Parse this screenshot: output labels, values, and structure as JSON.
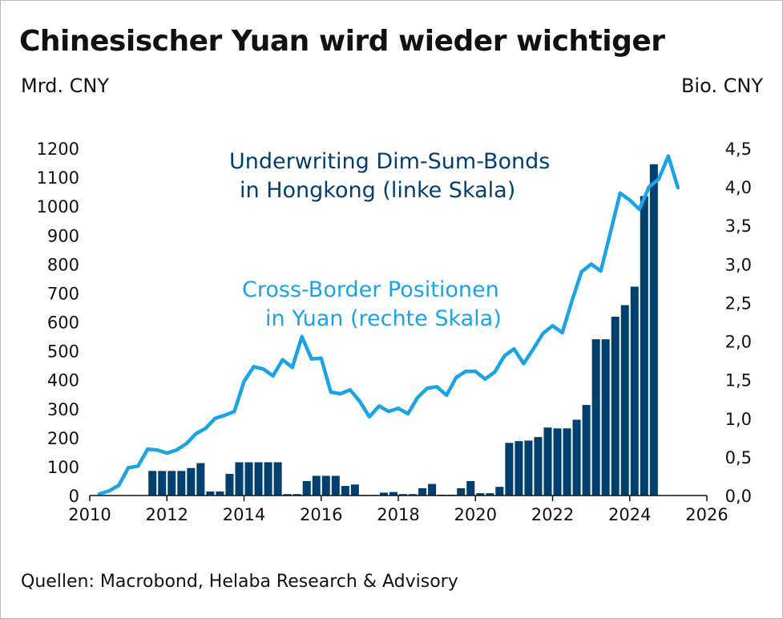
{
  "header": {
    "title": "Chinesischer Yuan wird wieder wichtiger",
    "left_unit": "Mrd. CNY",
    "right_unit": "Bio. CNY"
  },
  "footer": {
    "source": "Quellen: Macrobond, Helaba Research & Advisory"
  },
  "chart_data": {
    "type": "bar",
    "x_axis": {
      "range": [
        2010,
        2026
      ],
      "ticks": [
        "2010",
        "2012",
        "2014",
        "2016",
        "2018",
        "2020",
        "2022",
        "2024",
        "2026"
      ]
    },
    "y_left": {
      "range": [
        0,
        1200
      ],
      "ticks": [
        "0",
        "100",
        "200",
        "300",
        "400",
        "500",
        "600",
        "700",
        "800",
        "900",
        "1000",
        "1100",
        "1200"
      ]
    },
    "y_right": {
      "range": [
        0,
        4.5
      ],
      "ticks": [
        "0,0",
        "0,5",
        "1,0",
        "1,5",
        "2,0",
        "2,5",
        "3,0",
        "3,5",
        "4,0",
        "4,5"
      ]
    },
    "grid": false,
    "colors": {
      "bars": "#00406e",
      "line": "#1aa3e6"
    },
    "annotations": {
      "bars_label_line1": "Underwriting Dim-Sum-Bonds",
      "bars_label_line2": "in Hongkong (linke Skala)",
      "line_label_line1": "Cross-Border Positionen",
      "line_label_line2": "in Yuan (rechte Skala)"
    },
    "series": [
      {
        "axis": "left",
        "type": "bar",
        "points": [
          {
            "x": 2011.5,
            "y": 85
          },
          {
            "x": 2011.75,
            "y": 85
          },
          {
            "x": 2012.0,
            "y": 85
          },
          {
            "x": 2012.25,
            "y": 85
          },
          {
            "x": 2012.5,
            "y": 95
          },
          {
            "x": 2012.75,
            "y": 112
          },
          {
            "x": 2013.0,
            "y": 14
          },
          {
            "x": 2013.25,
            "y": 14
          },
          {
            "x": 2013.5,
            "y": 75
          },
          {
            "x": 2013.75,
            "y": 115
          },
          {
            "x": 2014.0,
            "y": 115
          },
          {
            "x": 2014.25,
            "y": 115
          },
          {
            "x": 2014.5,
            "y": 115
          },
          {
            "x": 2014.75,
            "y": 115
          },
          {
            "x": 2015.0,
            "y": 5
          },
          {
            "x": 2015.25,
            "y": 5
          },
          {
            "x": 2015.5,
            "y": 50
          },
          {
            "x": 2015.75,
            "y": 68
          },
          {
            "x": 2016.0,
            "y": 68
          },
          {
            "x": 2016.25,
            "y": 68
          },
          {
            "x": 2016.5,
            "y": 33
          },
          {
            "x": 2016.75,
            "y": 38
          },
          {
            "x": 2017.0,
            "y": 2
          },
          {
            "x": 2017.25,
            "y": 2
          },
          {
            "x": 2017.5,
            "y": 10
          },
          {
            "x": 2017.75,
            "y": 12
          },
          {
            "x": 2018.0,
            "y": 5
          },
          {
            "x": 2018.25,
            "y": 5
          },
          {
            "x": 2018.5,
            "y": 25
          },
          {
            "x": 2018.75,
            "y": 40
          },
          {
            "x": 2019.0,
            "y": 3
          },
          {
            "x": 2019.25,
            "y": 3
          },
          {
            "x": 2019.5,
            "y": 25
          },
          {
            "x": 2019.75,
            "y": 50
          },
          {
            "x": 2020.0,
            "y": 8
          },
          {
            "x": 2020.25,
            "y": 8
          },
          {
            "x": 2020.5,
            "y": 30
          },
          {
            "x": 2020.75,
            "y": 182
          },
          {
            "x": 2021.0,
            "y": 188
          },
          {
            "x": 2021.25,
            "y": 190
          },
          {
            "x": 2021.5,
            "y": 202
          },
          {
            "x": 2021.75,
            "y": 235
          },
          {
            "x": 2022.0,
            "y": 232
          },
          {
            "x": 2022.25,
            "y": 232
          },
          {
            "x": 2022.5,
            "y": 262
          },
          {
            "x": 2022.75,
            "y": 313
          },
          {
            "x": 2023.0,
            "y": 540
          },
          {
            "x": 2023.25,
            "y": 540
          },
          {
            "x": 2023.5,
            "y": 618
          },
          {
            "x": 2023.75,
            "y": 658
          },
          {
            "x": 2024.0,
            "y": 722
          },
          {
            "x": 2024.25,
            "y": 1035
          },
          {
            "x": 2024.5,
            "y": 1145
          }
        ]
      },
      {
        "axis": "right",
        "type": "line",
        "points": [
          {
            "x": 2010.25,
            "y": 0.02
          },
          {
            "x": 2010.5,
            "y": 0.06
          },
          {
            "x": 2010.75,
            "y": 0.13
          },
          {
            "x": 2011.0,
            "y": 0.36
          },
          {
            "x": 2011.25,
            "y": 0.38
          },
          {
            "x": 2011.5,
            "y": 0.6
          },
          {
            "x": 2011.75,
            "y": 0.59
          },
          {
            "x": 2012.0,
            "y": 0.55
          },
          {
            "x": 2012.25,
            "y": 0.59
          },
          {
            "x": 2012.5,
            "y": 0.67
          },
          {
            "x": 2012.75,
            "y": 0.8
          },
          {
            "x": 2013.0,
            "y": 0.87
          },
          {
            "x": 2013.25,
            "y": 1.0
          },
          {
            "x": 2013.5,
            "y": 1.04
          },
          {
            "x": 2013.75,
            "y": 1.09
          },
          {
            "x": 2014.0,
            "y": 1.48
          },
          {
            "x": 2014.25,
            "y": 1.67
          },
          {
            "x": 2014.5,
            "y": 1.64
          },
          {
            "x": 2014.75,
            "y": 1.55
          },
          {
            "x": 2015.0,
            "y": 1.76
          },
          {
            "x": 2015.25,
            "y": 1.66
          },
          {
            "x": 2015.5,
            "y": 2.06
          },
          {
            "x": 2015.75,
            "y": 1.77
          },
          {
            "x": 2016.0,
            "y": 1.78
          },
          {
            "x": 2016.25,
            "y": 1.34
          },
          {
            "x": 2016.5,
            "y": 1.32
          },
          {
            "x": 2016.75,
            "y": 1.37
          },
          {
            "x": 2017.0,
            "y": 1.22
          },
          {
            "x": 2017.25,
            "y": 1.02
          },
          {
            "x": 2017.5,
            "y": 1.16
          },
          {
            "x": 2017.75,
            "y": 1.09
          },
          {
            "x": 2018.0,
            "y": 1.13
          },
          {
            "x": 2018.25,
            "y": 1.06
          },
          {
            "x": 2018.5,
            "y": 1.27
          },
          {
            "x": 2018.75,
            "y": 1.39
          },
          {
            "x": 2019.0,
            "y": 1.41
          },
          {
            "x": 2019.25,
            "y": 1.3
          },
          {
            "x": 2019.5,
            "y": 1.53
          },
          {
            "x": 2019.75,
            "y": 1.61
          },
          {
            "x": 2020.0,
            "y": 1.61
          },
          {
            "x": 2020.25,
            "y": 1.51
          },
          {
            "x": 2020.5,
            "y": 1.6
          },
          {
            "x": 2020.75,
            "y": 1.81
          },
          {
            "x": 2021.0,
            "y": 1.9
          },
          {
            "x": 2021.25,
            "y": 1.71
          },
          {
            "x": 2021.5,
            "y": 1.9
          },
          {
            "x": 2021.75,
            "y": 2.1
          },
          {
            "x": 2022.0,
            "y": 2.2
          },
          {
            "x": 2022.25,
            "y": 2.11
          },
          {
            "x": 2022.5,
            "y": 2.52
          },
          {
            "x": 2022.75,
            "y": 2.9
          },
          {
            "x": 2023.0,
            "y": 3.0
          },
          {
            "x": 2023.25,
            "y": 2.91
          },
          {
            "x": 2023.5,
            "y": 3.41
          },
          {
            "x": 2023.75,
            "y": 3.92
          },
          {
            "x": 2024.0,
            "y": 3.83
          },
          {
            "x": 2024.25,
            "y": 3.71
          },
          {
            "x": 2024.5,
            "y": 4.0
          },
          {
            "x": 2024.75,
            "y": 4.1
          },
          {
            "x": 2025.0,
            "y": 4.4
          },
          {
            "x": 2025.25,
            "y": 3.99
          }
        ]
      }
    ]
  }
}
